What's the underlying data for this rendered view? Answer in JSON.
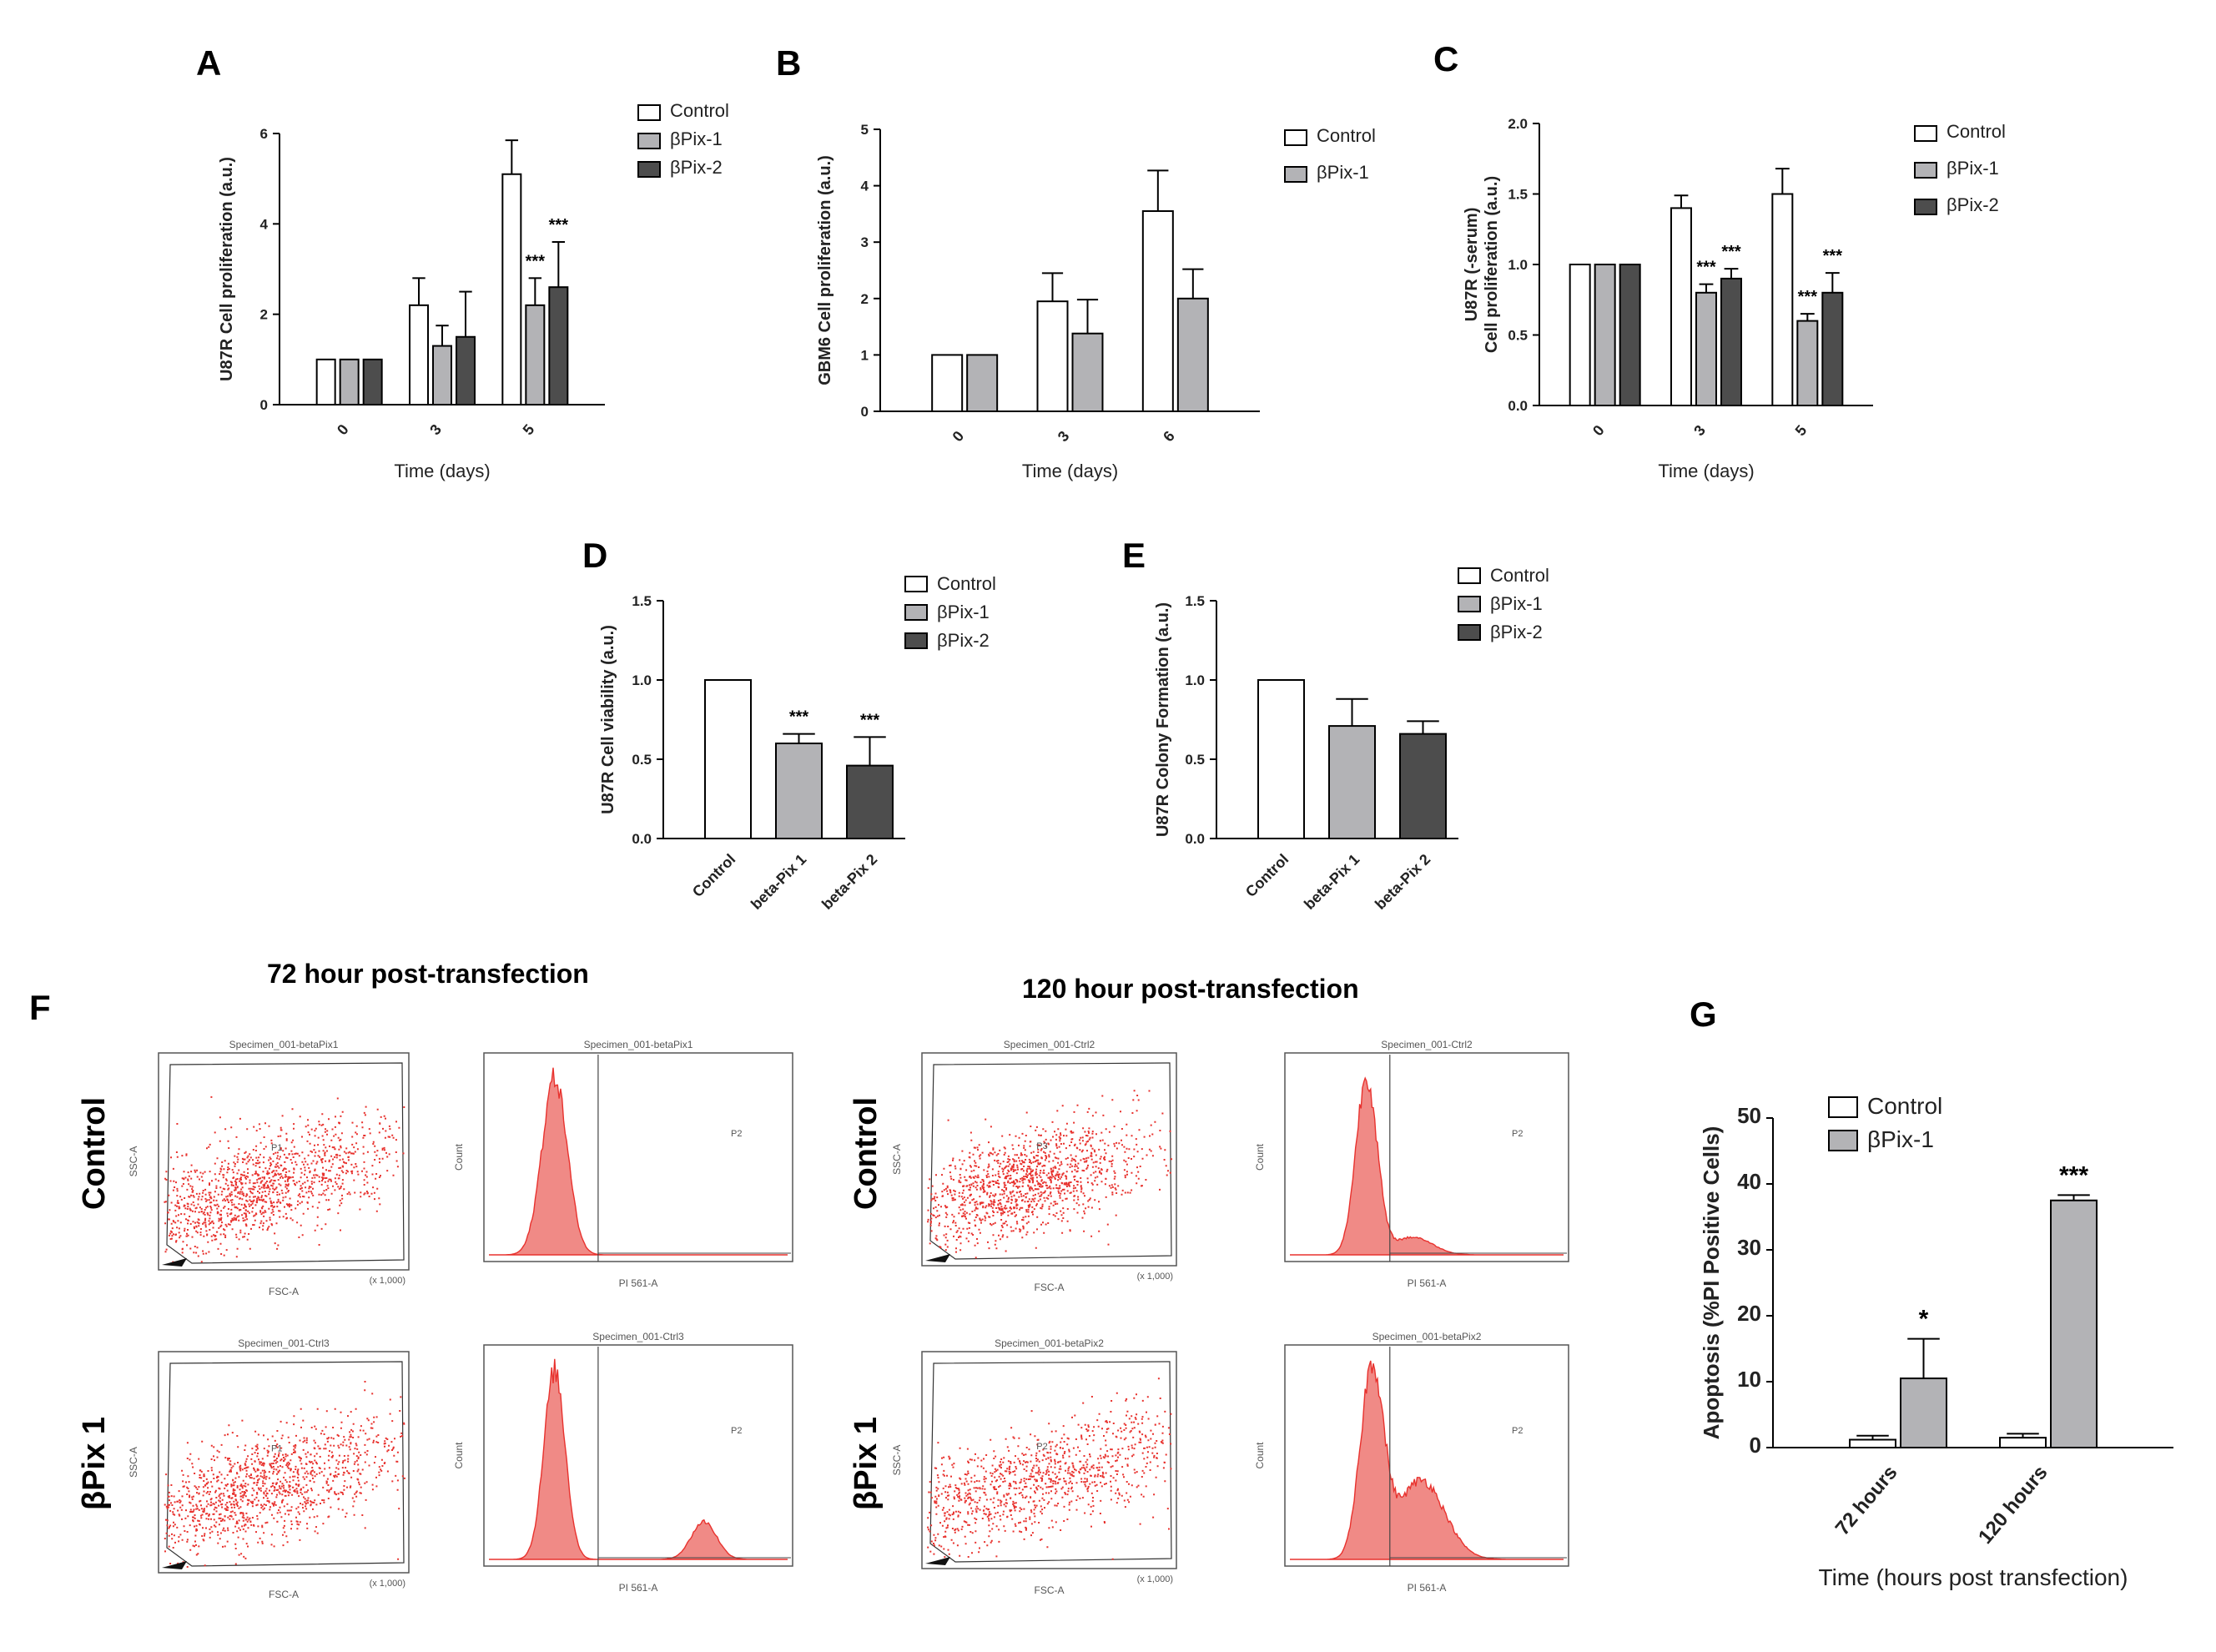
{
  "panel_letters": [
    "A",
    "B",
    "C",
    "D",
    "E",
    "F",
    "G"
  ],
  "colors": {
    "control": "#ffffff",
    "bpix1": "#b3b3b6",
    "bpix2": "#4d4d4d",
    "flow": "#e8322e",
    "flow_fill": "#f08a86"
  },
  "flow": {
    "title_72": "72 hour post-transfection",
    "title_120": "120 hour post-transfection",
    "row_control": "Control",
    "row_bpix1": "βPix 1",
    "plots": [
      {
        "kind": "scatter",
        "title": "Specimen_001-betaPix1",
        "gate": "P1",
        "ylabel": "SSC-A",
        "xlabel": "FSC-A",
        "scale": "(x 1,000)"
      },
      {
        "kind": "histogram",
        "title": "Specimen_001-betaPix1",
        "gate": "P2",
        "ylabel": "Count",
        "xlabel": "PI 561-A"
      },
      {
        "kind": "scatter",
        "title": "Specimen_001-Ctrl2",
        "gate": "P3",
        "ylabel": "SSC-A",
        "xlabel": "FSC-A",
        "scale": "(x 1,000)"
      },
      {
        "kind": "histogram",
        "title": "Specimen_001-Ctrl2",
        "gate": "P2",
        "ylabel": "Count",
        "xlabel": "PI 561-A"
      },
      {
        "kind": "scatter",
        "title": "Specimen_001-Ctrl3",
        "gate": "P1",
        "ylabel": "SSC-A",
        "xlabel": "FSC-A",
        "scale": "(x 1,000)"
      },
      {
        "kind": "histogram",
        "title": "Specimen_001-Ctrl3",
        "gate": "P2",
        "ylabel": "Count",
        "xlabel": "PI 561-A"
      },
      {
        "kind": "scatter",
        "title": "Specimen_001-betaPix2",
        "gate": "P2",
        "ylabel": "SSC-A",
        "xlabel": "FSC-A",
        "scale": "(x 1,000)"
      },
      {
        "kind": "histogram",
        "title": "Specimen_001-betaPix2",
        "gate": "P2",
        "ylabel": "Count",
        "xlabel": "PI 561-A"
      }
    ]
  },
  "chart_data": [
    {
      "id": "A",
      "type": "bar",
      "title": "",
      "xlabel": "Time (days)",
      "ylabel": "U87R Cell proliferation (a.u.)",
      "categories": [
        "0",
        "3",
        "5"
      ],
      "ylim": [
        0,
        6
      ],
      "yticks": [
        0,
        2,
        4,
        6
      ],
      "series": [
        {
          "name": "Control",
          "values": [
            1.0,
            2.2,
            5.1
          ],
          "errors": [
            0,
            0.6,
            0.75
          ],
          "stars": [
            "",
            "",
            ""
          ]
        },
        {
          "name": "βPix-1",
          "values": [
            1.0,
            1.3,
            2.2
          ],
          "errors": [
            0,
            0.45,
            0.6
          ],
          "stars": [
            "",
            "",
            "***"
          ]
        },
        {
          "name": "βPix-2",
          "values": [
            1.0,
            1.5,
            2.6
          ],
          "errors": [
            0,
            1.0,
            1.0
          ],
          "stars": [
            "",
            "",
            "***"
          ]
        }
      ]
    },
    {
      "id": "B",
      "type": "bar",
      "title": "",
      "xlabel": "Time (days)",
      "ylabel": "GBM6 Cell proliferation (a.u.)",
      "categories": [
        "0",
        "3",
        "6"
      ],
      "ylim": [
        0,
        5
      ],
      "yticks": [
        0,
        1,
        2,
        3,
        4,
        5
      ],
      "series": [
        {
          "name": "Control",
          "values": [
            1.0,
            1.95,
            3.55
          ],
          "errors": [
            0,
            0.5,
            0.72
          ],
          "stars": [
            "",
            "",
            ""
          ]
        },
        {
          "name": "βPix-1",
          "values": [
            1.0,
            1.38,
            2.0
          ],
          "errors": [
            0,
            0.6,
            0.52
          ],
          "stars": [
            "",
            "",
            ""
          ]
        }
      ]
    },
    {
      "id": "C",
      "type": "bar",
      "title": "",
      "xlabel": "Time (days)",
      "ylabel": "U87R (-serum) Cell proliferation (a.u.)",
      "ylabel_lines": [
        "U87R (-serum)",
        "Cell proliferation (a.u.)"
      ],
      "categories": [
        "0",
        "3",
        "5"
      ],
      "ylim": [
        0,
        2.0
      ],
      "yticks": [
        0.0,
        0.5,
        1.0,
        1.5,
        2.0
      ],
      "series": [
        {
          "name": "Control",
          "values": [
            1.0,
            1.4,
            1.5
          ],
          "errors": [
            0,
            0.09,
            0.18
          ],
          "stars": [
            "",
            "",
            ""
          ]
        },
        {
          "name": "βPix-1",
          "values": [
            1.0,
            0.8,
            0.6
          ],
          "errors": [
            0,
            0.06,
            0.05
          ],
          "stars": [
            "",
            "***",
            "***"
          ]
        },
        {
          "name": "βPix-2",
          "values": [
            1.0,
            0.9,
            0.8
          ],
          "errors": [
            0,
            0.07,
            0.14
          ],
          "stars": [
            "",
            "***",
            "***"
          ]
        }
      ]
    },
    {
      "id": "D",
      "type": "bar",
      "title": "",
      "xlabel": "",
      "ylabel": "U87R Cell viability (a.u.)",
      "categories": [
        "Control",
        "beta-Pix 1",
        "beta-Pix 2"
      ],
      "ylim": [
        0,
        1.5
      ],
      "yticks": [
        0.0,
        0.5,
        1.0,
        1.5
      ],
      "legend": [
        "Control",
        "βPix-1",
        "βPix-2"
      ],
      "values": [
        1.0,
        0.6,
        0.46
      ],
      "errors": [
        0,
        0.06,
        0.18
      ],
      "stars": [
        "",
        "***",
        "***"
      ]
    },
    {
      "id": "E",
      "type": "bar",
      "title": "",
      "xlabel": "",
      "ylabel": "U87R Colony Formation (a.u.)",
      "categories": [
        "Control",
        "beta-Pix 1",
        "beta-Pix 2"
      ],
      "ylim": [
        0,
        1.5
      ],
      "yticks": [
        0.0,
        0.5,
        1.0,
        1.5
      ],
      "legend": [
        "Control",
        "βPix-1",
        "βPix-2"
      ],
      "values": [
        1.0,
        0.71,
        0.66
      ],
      "errors": [
        0,
        0.17,
        0.08
      ],
      "stars": [
        "",
        "",
        ""
      ]
    },
    {
      "id": "G",
      "type": "bar",
      "title": "",
      "xlabel": "Time (hours post transfection)",
      "ylabel": "Apoptosis (%PI Positive Cells)",
      "categories": [
        "72 hours",
        "120 hours"
      ],
      "ylim": [
        0,
        50
      ],
      "yticks": [
        0,
        10,
        20,
        30,
        40,
        50
      ],
      "series": [
        {
          "name": "Control",
          "values": [
            1.2,
            1.5
          ],
          "errors": [
            0.6,
            0.6
          ],
          "stars": [
            "",
            ""
          ]
        },
        {
          "name": "βPix-1",
          "values": [
            10.5,
            37.5
          ],
          "errors": [
            6.0,
            0.8
          ],
          "stars": [
            "*",
            "***"
          ]
        }
      ]
    }
  ]
}
